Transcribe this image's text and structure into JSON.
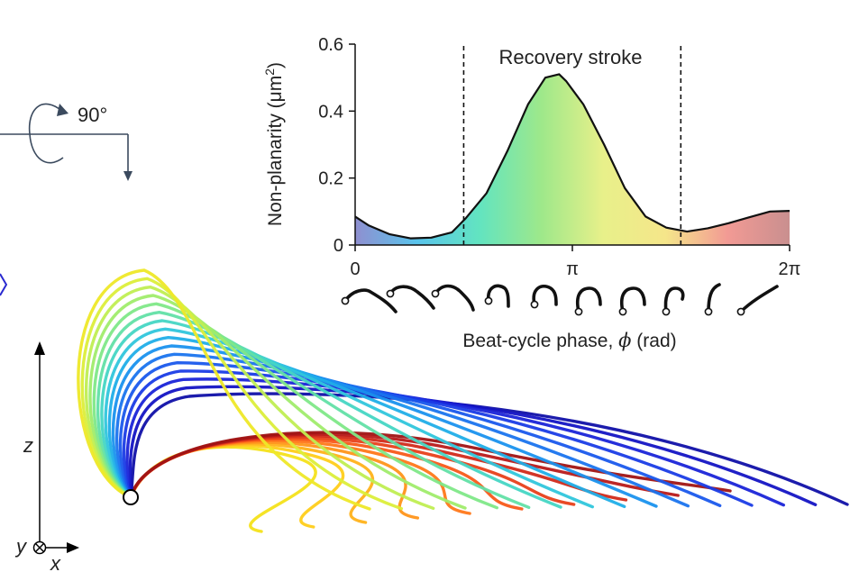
{
  "rotation": {
    "label": "90°",
    "icon": "rotation-arrow-icon"
  },
  "chart_data": {
    "type": "area",
    "xlabel_prefix": "Beat-cycle phase, ",
    "xlabel_symbol": "ϕ",
    "xlabel_suffix": " (rad)",
    "ylabel": "Non-planarity (μm",
    "ylabel_sup": "2",
    "ylabel_close": ")",
    "ylim": [
      0,
      0.6
    ],
    "xlim": [
      0,
      6.2832
    ],
    "yticks": [
      {
        "value": 0,
        "label": "0"
      },
      {
        "value": 0.2,
        "label": "0.2"
      },
      {
        "value": 0.4,
        "label": "0.4"
      },
      {
        "value": 0.6,
        "label": "0.6"
      }
    ],
    "xticks": [
      {
        "value": 0,
        "label": "0"
      },
      {
        "value": 3.1416,
        "label": "π"
      },
      {
        "value": 6.2832,
        "label": "2π"
      }
    ],
    "annotation": {
      "text": "Recovery stroke",
      "x_start": 1.57,
      "x_end": 4.71
    },
    "x": [
      0,
      0.2,
      0.5,
      0.8,
      1.1,
      1.4,
      1.6,
      1.9,
      2.2,
      2.5,
      2.75,
      2.95,
      3.05,
      3.3,
      3.6,
      3.9,
      4.2,
      4.5,
      4.8,
      5.1,
      5.4,
      5.7,
      6.0,
      6.2832
    ],
    "y": [
      0.085,
      0.058,
      0.032,
      0.02,
      0.022,
      0.038,
      0.08,
      0.155,
      0.28,
      0.42,
      0.5,
      0.51,
      0.49,
      0.42,
      0.3,
      0.17,
      0.085,
      0.052,
      0.04,
      0.05,
      0.065,
      0.083,
      0.1,
      0.102
    ],
    "fill_gradient": [
      "#8f8fd0",
      "#59c4ec",
      "#62e4c0",
      "#9ee88a",
      "#e8f08a",
      "#f5e68a",
      "#f29a94",
      "#c98f8f"
    ]
  },
  "axes3d": {
    "z_label": "z",
    "y_label": "y",
    "x_label": "x"
  }
}
